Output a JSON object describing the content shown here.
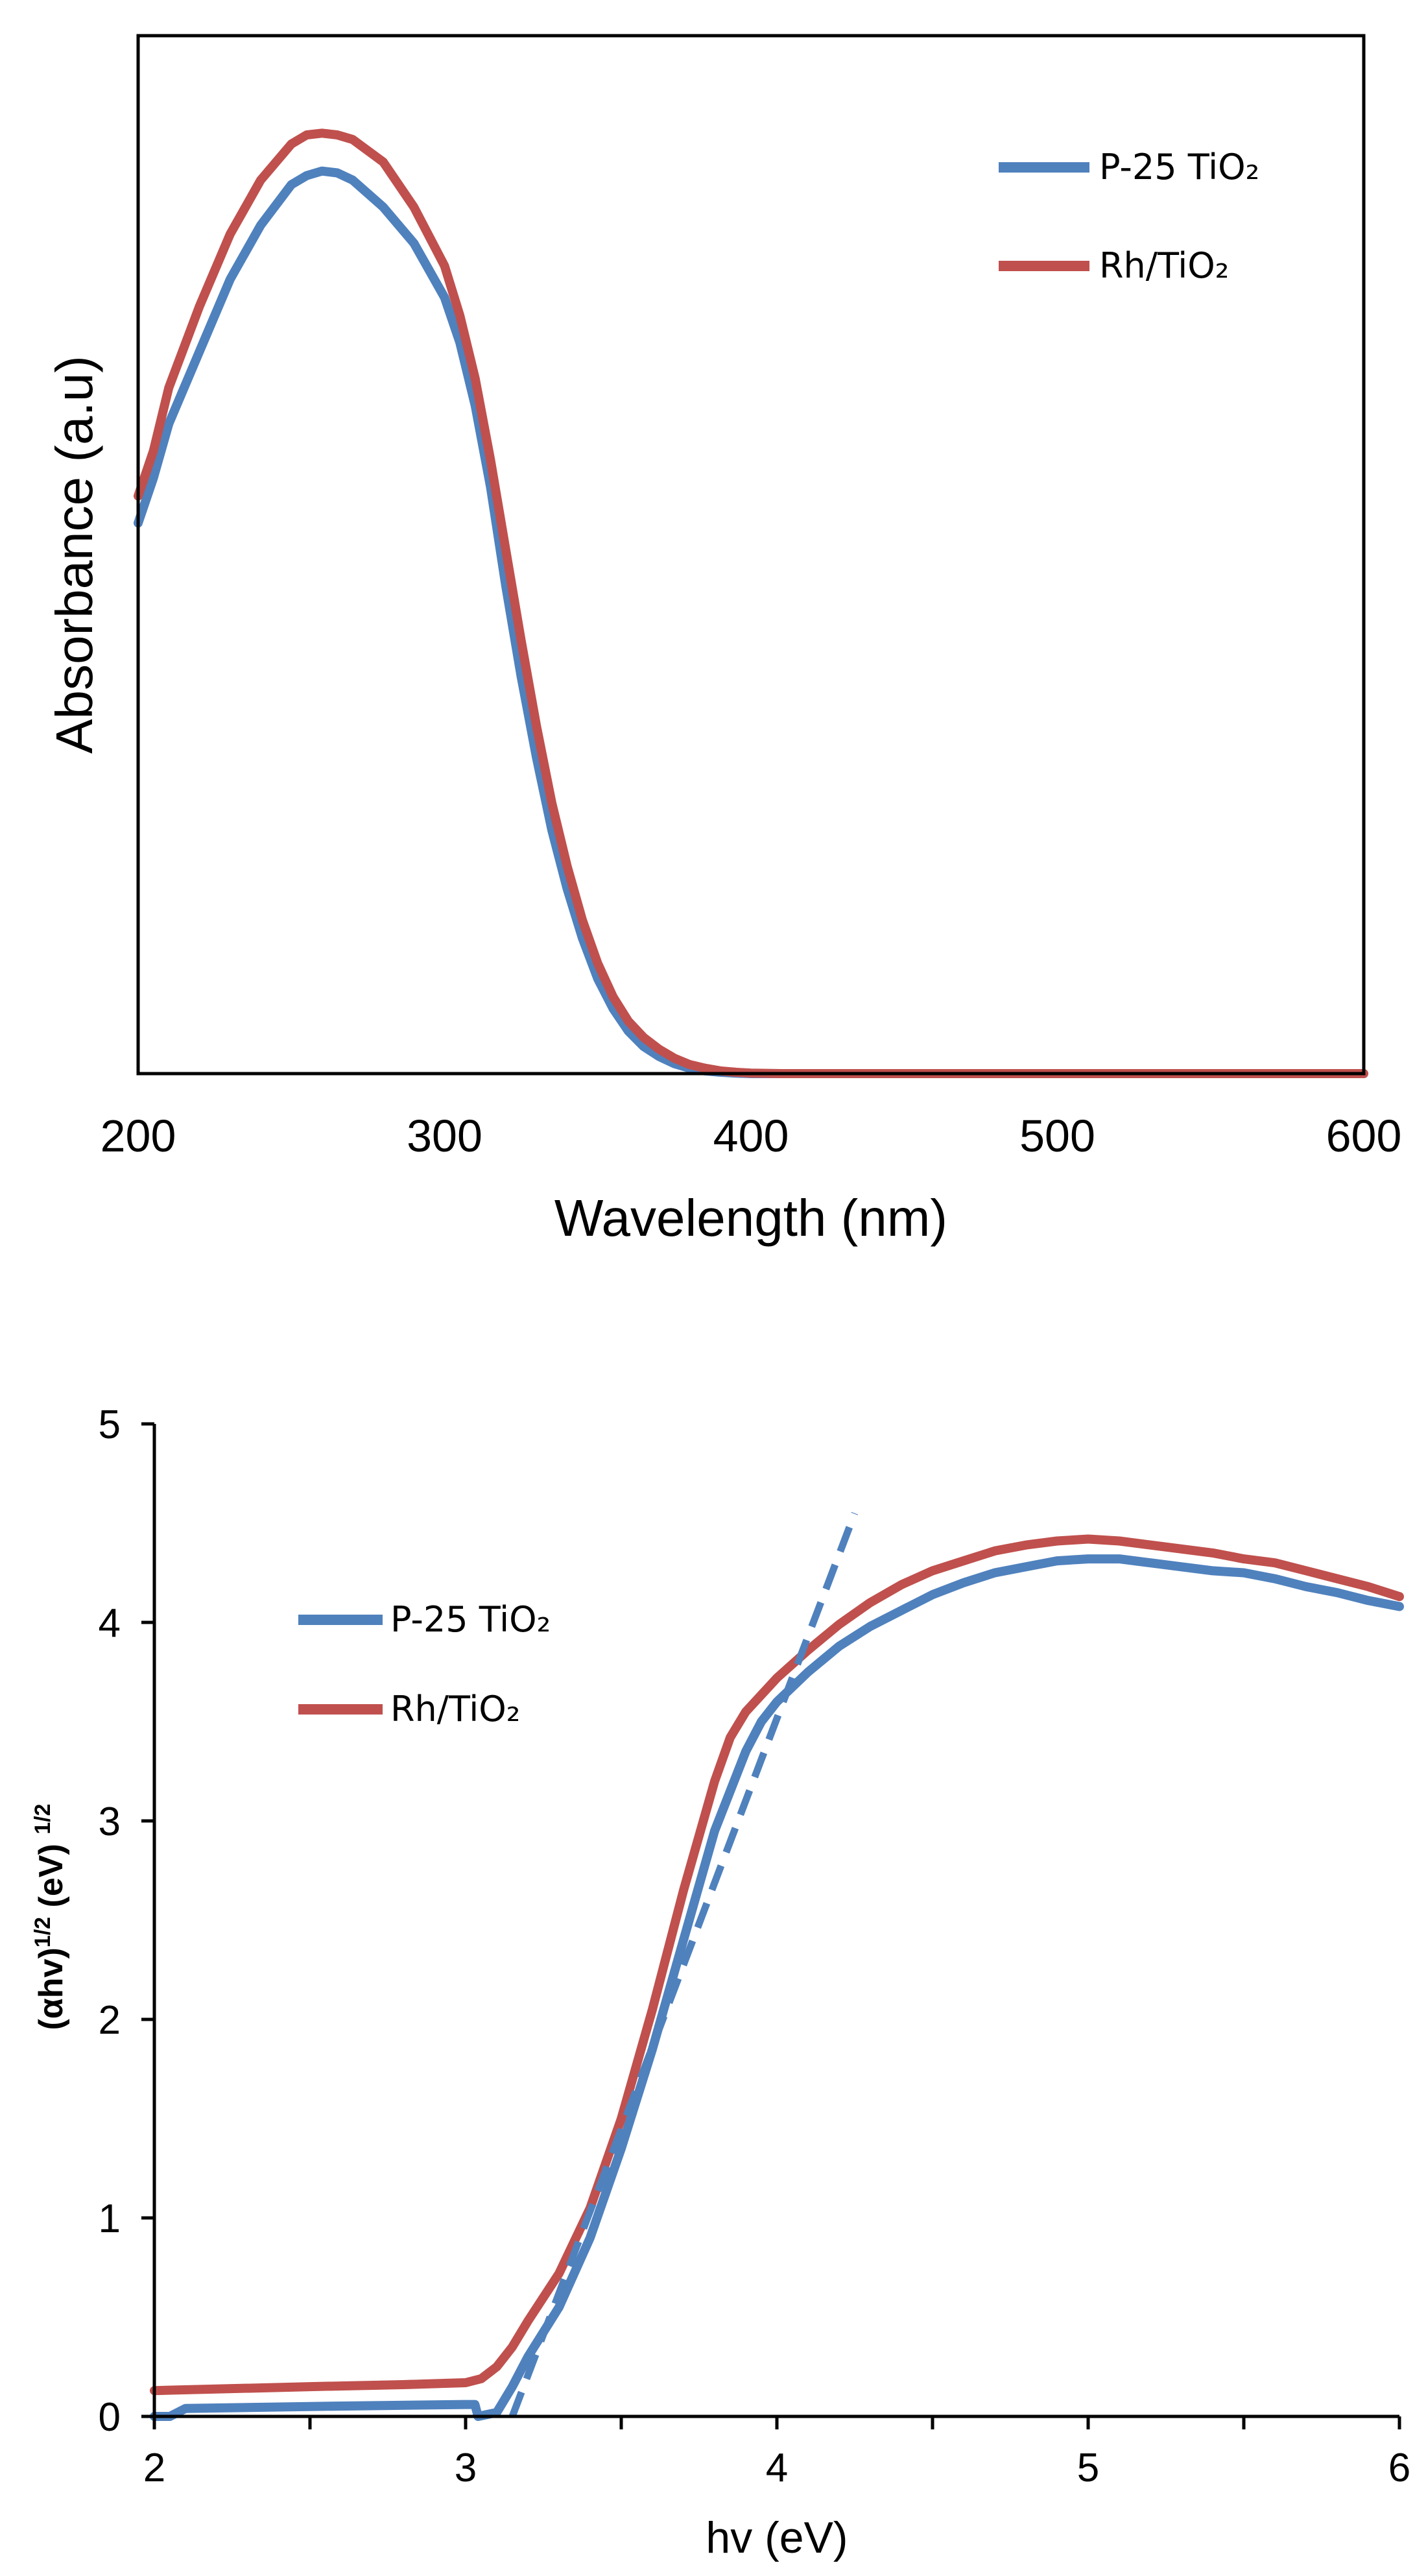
{
  "chart_data": [
    {
      "type": "line",
      "title": "",
      "xlabel": "Wavelength (nm)",
      "ylabel": "Absorbance (a.u)",
      "xlim": [
        200,
        600
      ],
      "ylim": [
        0,
        1.15
      ],
      "xticks": [
        200,
        300,
        400,
        500,
        600
      ],
      "xtick_labels": [
        "200",
        "300",
        "400",
        "500",
        "600"
      ],
      "yticks": [],
      "grid": false,
      "legend_position": "top-right",
      "series": [
        {
          "name": "P-25 TiO₂",
          "color": "#4f81bd",
          "x": [
            200,
            205,
            210,
            220,
            230,
            240,
            250,
            255,
            260,
            265,
            270,
            280,
            290,
            300,
            305,
            310,
            315,
            320,
            325,
            330,
            335,
            340,
            345,
            350,
            355,
            360,
            365,
            370,
            375,
            380,
            385,
            390,
            395,
            400,
            420,
            450,
            500,
            550,
            600
          ],
          "values": [
            0.61,
            0.66,
            0.72,
            0.8,
            0.88,
            0.94,
            0.985,
            0.995,
            1.0,
            0.998,
            0.99,
            0.96,
            0.92,
            0.86,
            0.81,
            0.74,
            0.65,
            0.54,
            0.44,
            0.35,
            0.27,
            0.205,
            0.15,
            0.105,
            0.072,
            0.047,
            0.03,
            0.019,
            0.011,
            0.006,
            0.003,
            0.0015,
            0.0005,
            0.0,
            0.0,
            0.0,
            0.0,
            0.0,
            0.0
          ]
        },
        {
          "name": "Rh/TiO₂",
          "color": "#c0504d",
          "x": [
            200,
            205,
            210,
            220,
            230,
            240,
            250,
            255,
            260,
            265,
            270,
            280,
            290,
            300,
            305,
            310,
            315,
            320,
            325,
            330,
            335,
            340,
            345,
            350,
            355,
            360,
            365,
            370,
            375,
            380,
            385,
            390,
            395,
            400,
            410,
            420,
            450,
            500,
            550,
            600
          ],
          "values": [
            0.64,
            0.69,
            0.76,
            0.85,
            0.93,
            0.99,
            1.03,
            1.04,
            1.042,
            1.04,
            1.035,
            1.01,
            0.96,
            0.895,
            0.84,
            0.77,
            0.68,
            0.58,
            0.48,
            0.385,
            0.3,
            0.23,
            0.17,
            0.122,
            0.085,
            0.058,
            0.04,
            0.027,
            0.017,
            0.01,
            0.006,
            0.003,
            0.0015,
            0.0005,
            0.0,
            0.0,
            0.0,
            0.0,
            0.0,
            0.0
          ]
        }
      ]
    },
    {
      "type": "line",
      "title": "",
      "xlabel": "hv (eV)",
      "ylabel": "(αhv)¹ᐟ² (eV) ¹ᐟ²",
      "ylabel_parts": {
        "p1": "(αhv)",
        "s1": "1/2",
        "p2": " (eV) ",
        "s2": "1/2"
      },
      "xlim": [
        2,
        6
      ],
      "ylim": [
        0,
        5
      ],
      "xticks": [
        2,
        3,
        4,
        5,
        6
      ],
      "xtick_labels": [
        "2",
        "3",
        "4",
        "5",
        "6"
      ],
      "yticks": [
        0,
        1,
        2,
        3,
        4,
        5
      ],
      "ytick_labels": [
        "0",
        "1",
        "2",
        "3",
        "4",
        "5"
      ],
      "grid": false,
      "legend_position": "upper-left",
      "series": [
        {
          "name": "P-25 TiO₂",
          "color": "#4f81bd",
          "x": [
            2.0,
            2.05,
            2.1,
            2.5,
            3.0,
            3.03,
            3.04,
            3.1,
            3.15,
            3.2,
            3.3,
            3.4,
            3.5,
            3.6,
            3.7,
            3.8,
            3.9,
            3.95,
            4.0,
            4.1,
            4.2,
            4.3,
            4.4,
            4.5,
            4.6,
            4.7,
            4.8,
            4.9,
            5.0,
            5.1,
            5.2,
            5.3,
            5.4,
            5.5,
            5.6,
            5.7,
            5.8,
            5.9,
            6.0
          ],
          "values": [
            0.0,
            0.0,
            0.04,
            0.05,
            0.06,
            0.06,
            0.0,
            0.02,
            0.15,
            0.3,
            0.55,
            0.9,
            1.35,
            1.85,
            2.4,
            2.95,
            3.35,
            3.5,
            3.6,
            3.75,
            3.88,
            3.98,
            4.06,
            4.14,
            4.2,
            4.25,
            4.28,
            4.31,
            4.32,
            4.32,
            4.3,
            4.28,
            4.26,
            4.25,
            4.22,
            4.18,
            4.15,
            4.11,
            4.08
          ]
        },
        {
          "name": "Rh/TiO₂",
          "color": "#c0504d",
          "x": [
            2.0,
            2.5,
            2.8,
            3.0,
            3.05,
            3.1,
            3.15,
            3.2,
            3.3,
            3.4,
            3.5,
            3.6,
            3.7,
            3.8,
            3.85,
            3.9,
            4.0,
            4.1,
            4.2,
            4.3,
            4.4,
            4.5,
            4.6,
            4.7,
            4.8,
            4.9,
            5.0,
            5.1,
            5.2,
            5.3,
            5.4,
            5.5,
            5.6,
            5.7,
            5.8,
            5.9,
            6.0
          ],
          "values": [
            0.13,
            0.15,
            0.16,
            0.17,
            0.19,
            0.25,
            0.35,
            0.48,
            0.72,
            1.05,
            1.5,
            2.05,
            2.65,
            3.2,
            3.42,
            3.55,
            3.72,
            3.86,
            3.99,
            4.1,
            4.19,
            4.26,
            4.31,
            4.36,
            4.39,
            4.41,
            4.42,
            4.41,
            4.39,
            4.37,
            4.35,
            4.32,
            4.3,
            4.26,
            4.22,
            4.18,
            4.13
          ]
        }
      ],
      "annotations": [
        {
          "kind": "dashed-tangent",
          "color": "#4f81bd",
          "x": [
            3.15,
            4.25
          ],
          "values": [
            0.0,
            4.55
          ]
        }
      ]
    }
  ]
}
